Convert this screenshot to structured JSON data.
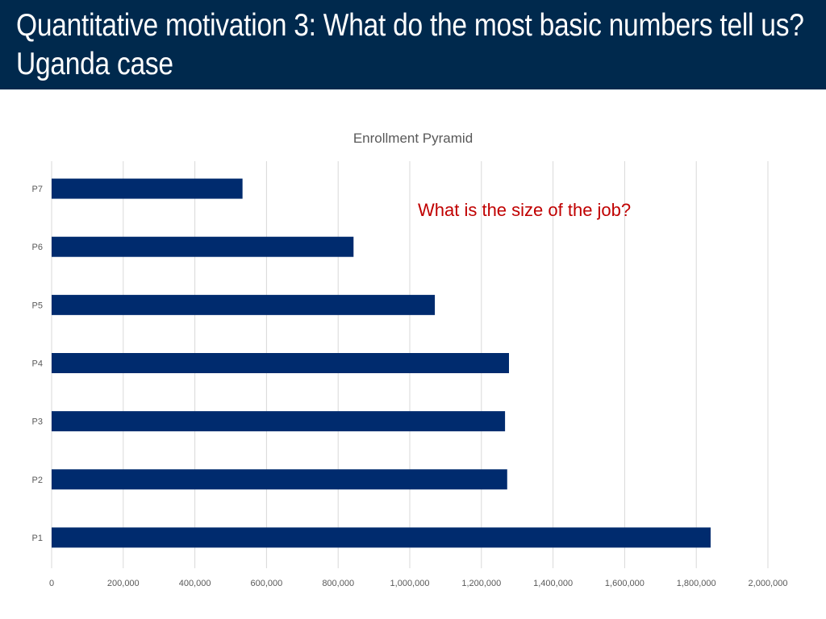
{
  "slide": {
    "title": "Quantitative motivation 3: What do the most basic numbers tell us? Uganda case",
    "annotation": "What is the size of the job?"
  },
  "colors": {
    "title_bar": "#00294d",
    "bar": "#002b6e",
    "annotation": "#c00000",
    "grid": "#d9d9d9"
  },
  "chart_data": {
    "type": "bar",
    "orientation": "horizontal",
    "title": "Enrollment Pyramid",
    "categories": [
      "P1",
      "P2",
      "P3",
      "P4",
      "P5",
      "P6",
      "P7"
    ],
    "values": [
      1840000,
      1272000,
      1266000,
      1277000,
      1070000,
      843000,
      533000
    ],
    "xlim": [
      0,
      2000000
    ],
    "xticks": [
      0,
      200000,
      400000,
      600000,
      800000,
      1000000,
      1200000,
      1400000,
      1600000,
      1800000,
      2000000
    ],
    "xtick_labels": [
      "0",
      "200,000",
      "400,000",
      "600,000",
      "800,000",
      "1,000,000",
      "1,200,000",
      "1,400,000",
      "1,600,000",
      "1,800,000",
      "2,000,000"
    ],
    "grid": true,
    "legend": "none"
  }
}
